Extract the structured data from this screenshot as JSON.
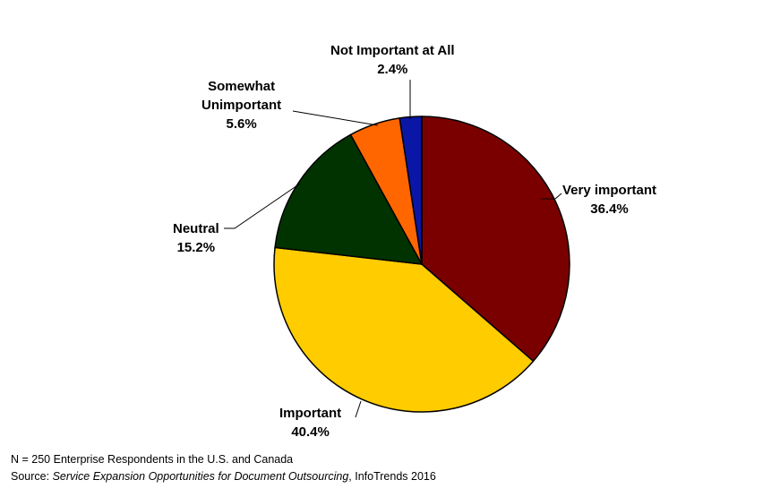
{
  "chart_data": {
    "type": "pie",
    "categories": [
      "Very important",
      "Important",
      "Neutral",
      "Somewhat Unimportant",
      "Not Important at All"
    ],
    "values": [
      36.4,
      40.4,
      15.2,
      5.6,
      2.4
    ],
    "value_labels": [
      "36.4%",
      "40.4%",
      "15.2%",
      "5.6%",
      "2.4%"
    ],
    "label_lines": [
      [
        "Very important"
      ],
      [
        "Important"
      ],
      [
        "Neutral"
      ],
      [
        "Somewhat",
        "Unimportant"
      ],
      [
        "Not Important at All"
      ]
    ],
    "colors": [
      "#7a0000",
      "#ffcc00",
      "#003300",
      "#ff6600",
      "#0a17a6"
    ],
    "start": "12 o'clock",
    "direction": "clockwise",
    "legend": "none"
  },
  "footer": {
    "note": "N = 250 Enterprise Respondents in the U.S. and Canada",
    "source_prefix": "Source: ",
    "source_title": "Service Expansion Opportunities for Document Outsourcing",
    "source_suffix": ", InfoTrends 2016"
  }
}
